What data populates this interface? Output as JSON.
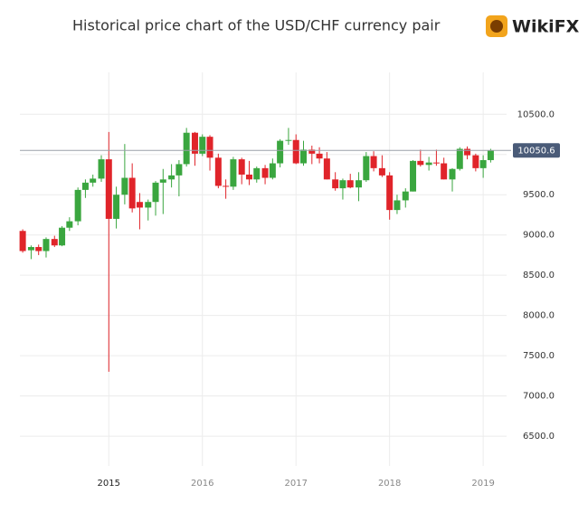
{
  "chart_data": {
    "type": "candlestick",
    "title": "Historical price chart of the USD/CHF currency pair",
    "brand": "WikiFX",
    "x": [
      2014.08,
      2014.17,
      2014.25,
      2014.33,
      2014.42,
      2014.5,
      2014.58,
      2014.67,
      2014.75,
      2014.83,
      2014.92,
      2015,
      2015.08,
      2015.17,
      2015.25,
      2015.33,
      2015.42,
      2015.5,
      2015.58,
      2015.67,
      2015.75,
      2015.83,
      2015.92,
      2016,
      2016.08,
      2016.17,
      2016.25,
      2016.33,
      2016.42,
      2016.5,
      2016.58,
      2016.67,
      2016.75,
      2016.83,
      2016.92,
      2017,
      2017.08,
      2017.17,
      2017.25,
      2017.33,
      2017.42,
      2017.5,
      2017.58,
      2017.67,
      2017.75,
      2017.83,
      2017.92,
      2018,
      2018.08,
      2018.17,
      2018.25,
      2018.33,
      2018.42,
      2018.5,
      2018.58,
      2018.67,
      2018.75,
      2018.83,
      2018.92,
      2019,
      2019.08
    ],
    "open": [
      9050,
      8810,
      8850,
      8800,
      8950,
      8870,
      9090,
      9170,
      9560,
      9650,
      9700,
      9940,
      9200,
      9500,
      9710,
      9410,
      9340,
      9410,
      9650,
      9690,
      9740,
      9880,
      10270,
      10010,
      10220,
      9960,
      9610,
      9600,
      9940,
      9750,
      9690,
      9830,
      9710,
      9890,
      10170,
      10180,
      9890,
      10060,
      10010,
      9950,
      9690,
      9580,
      9680,
      9590,
      9680,
      9980,
      9830,
      9740,
      9310,
      9430,
      9540,
      9920,
      9870,
      9900,
      9890,
      9690,
      9820,
      10070,
      9990,
      9830,
      9930
    ],
    "high": [
      9070,
      8870,
      8880,
      8970,
      8990,
      9110,
      9220,
      9590,
      9690,
      9750,
      9990,
      10280,
      9600,
      10130,
      9890,
      9520,
      9440,
      9670,
      9820,
      9880,
      9930,
      10330,
      10280,
      10250,
      10240,
      10010,
      9690,
      9970,
      9960,
      9920,
      9850,
      9870,
      9950,
      10190,
      10330,
      10250,
      10170,
      10110,
      10090,
      10030,
      9780,
      9700,
      9760,
      9780,
      10030,
      10040,
      9990,
      9780,
      9500,
      9580,
      9930,
      10060,
      9970,
      10060,
      9960,
      9830,
      10090,
      10100,
      10010,
      9990,
      10070
    ],
    "low": [
      8780,
      8700,
      8750,
      8720,
      8850,
      8860,
      9050,
      9120,
      9460,
      9600,
      9660,
      7300,
      9080,
      9380,
      9280,
      9070,
      9180,
      9240,
      9260,
      9590,
      9480,
      9850,
      9860,
      9980,
      9800,
      9580,
      9450,
      9560,
      9630,
      9620,
      9650,
      9630,
      9690,
      9840,
      10120,
      9880,
      9860,
      9880,
      9890,
      9690,
      9550,
      9440,
      9580,
      9420,
      9660,
      9790,
      9720,
      9190,
      9260,
      9340,
      9540,
      9850,
      9800,
      9860,
      9690,
      9540,
      9800,
      9940,
      9790,
      9710,
      9900
    ],
    "close": [
      8800,
      8850,
      8800,
      8950,
      8870,
      9090,
      9170,
      9560,
      9650,
      9700,
      9940,
      9200,
      9500,
      9710,
      9330,
      9340,
      9410,
      9650,
      9690,
      9740,
      9880,
      10270,
      10010,
      10220,
      9960,
      9610,
      9600,
      9940,
      9750,
      9690,
      9830,
      9710,
      9890,
      10170,
      10180,
      9890,
      10060,
      10010,
      9950,
      9690,
      9580,
      9680,
      9590,
      9680,
      9980,
      9830,
      9740,
      9310,
      9430,
      9540,
      9920,
      9870,
      9900,
      9890,
      9690,
      9820,
      10070,
      9990,
      9830,
      9930,
      10050
    ],
    "up_color": "#3aa63f",
    "down_color": "#e0242a",
    "price_line": 10050.6,
    "price_line_color": "#4a5b78",
    "xlim": [
      2014.05,
      2019.25
    ],
    "xticks": [
      2015,
      2016,
      2017,
      2018,
      2019
    ],
    "ylim": [
      6130,
      11020
    ],
    "yticks": [
      {
        "value": 6500,
        "label": "6500.0"
      },
      {
        "value": 7000,
        "label": "7000.0"
      },
      {
        "value": 7500,
        "label": "7500.0"
      },
      {
        "value": 8000,
        "label": "8000.0"
      },
      {
        "value": 8500,
        "label": "8500.0"
      },
      {
        "value": 9000,
        "label": "9000.0"
      },
      {
        "value": 9500,
        "label": "9500.0"
      },
      {
        "value": 10000,
        "label": "10000.0"
      },
      {
        "value": 10500,
        "label": "10500.0"
      }
    ],
    "grid": true
  }
}
